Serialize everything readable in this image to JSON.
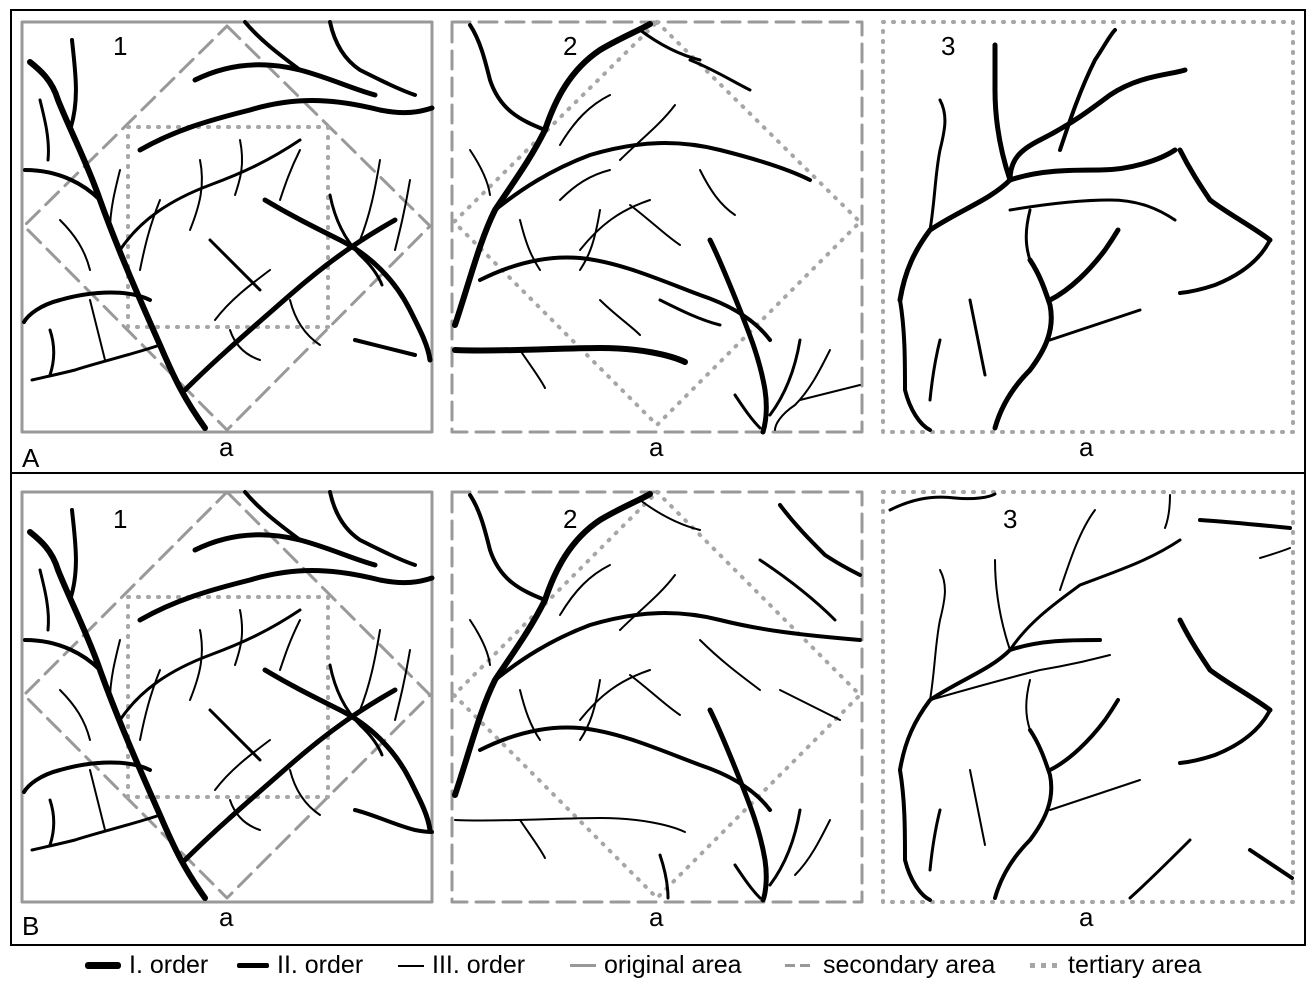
{
  "rows": [
    {
      "label": "A",
      "panels": [
        {
          "number": "1",
          "caption": "a"
        },
        {
          "number": "2",
          "caption": "a"
        },
        {
          "number": "3",
          "caption": "a"
        }
      ]
    },
    {
      "label": "B",
      "panels": [
        {
          "number": "1",
          "caption": "a"
        },
        {
          "number": "2",
          "caption": "a"
        },
        {
          "number": "3",
          "caption": "a"
        }
      ]
    }
  ],
  "legend": {
    "order1": "I. order",
    "order2": "II. order",
    "order3": "III. order",
    "original": "original area",
    "secondary": "secondary area",
    "tertiary": "tertiary area"
  },
  "colors": {
    "stream": "#000000",
    "frame": "#999999",
    "tertiary": "#a6a6a6"
  }
}
